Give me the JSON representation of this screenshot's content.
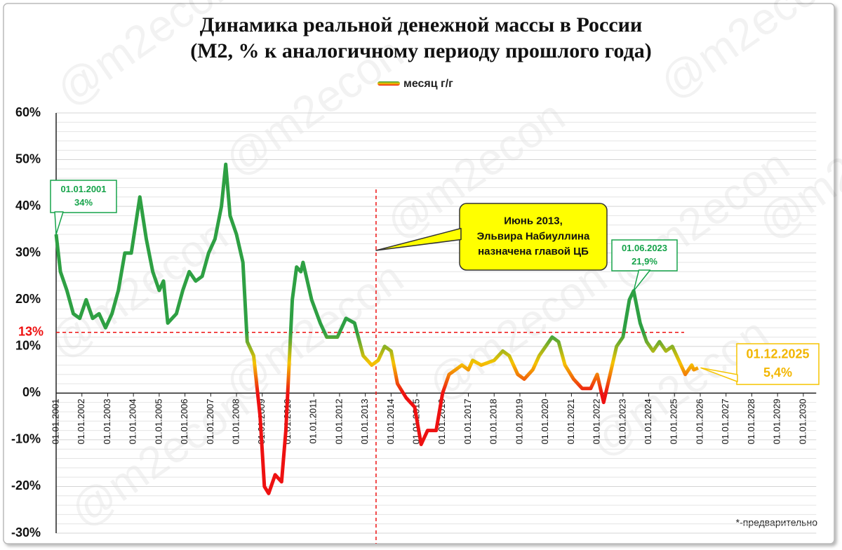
{
  "chart_data": {
    "type": "line",
    "title": [
      "Динамика реальной денежной массы в России",
      "(М2, % к аналогичному периоду прошлого года)"
    ],
    "watermark": "@m2econ",
    "footnote": "*-предварительно",
    "x": [
      "01.01.2001",
      "01.03.2001",
      "01.06.2001",
      "01.09.2001",
      "01.12.2001",
      "01.03.2002",
      "01.06.2002",
      "01.09.2002",
      "01.12.2002",
      "01.03.2003",
      "01.06.2003",
      "01.09.2003",
      "01.12.2003",
      "01.04.2004",
      "01.07.2004",
      "01.10.2004",
      "01.01.2005",
      "01.03.2005",
      "01.05.2005",
      "01.09.2005",
      "01.12.2005",
      "01.03.2006",
      "01.06.2006",
      "01.09.2006",
      "01.12.2006",
      "01.03.2007",
      "01.06.2007",
      "01.08.2007",
      "01.10.2007",
      "01.01.2008",
      "01.04.2008",
      "01.06.2008",
      "01.09.2008",
      "01.12.2008",
      "01.02.2009",
      "01.04.2009",
      "01.07.2009",
      "01.10.2009",
      "01.12.2009",
      "01.03.2010",
      "01.05.2010",
      "01.07.2010",
      "01.08.2010",
      "01.12.2010",
      "01.04.2011",
      "01.07.2011",
      "01.12.2011",
      "01.04.2012",
      "01.08.2012",
      "01.12.2012",
      "01.04.2013",
      "01.07.2013",
      "01.10.2013",
      "01.01.2014",
      "01.04.2014",
      "01.08.2014",
      "01.12.2014",
      "01.03.2015",
      "01.06.2015",
      "01.10.2015",
      "01.01.2016",
      "01.04.2016",
      "01.07.2016",
      "01.10.2016",
      "01.01.2017",
      "01.03.2017",
      "01.07.2017",
      "01.01.2018",
      "01.05.2018",
      "01.08.2018",
      "01.12.2018",
      "01.03.2019",
      "01.07.2019",
      "01.10.2019",
      "01.01.2020",
      "01.04.2020",
      "01.07.2020",
      "01.10.2020",
      "01.02.2021",
      "01.06.2021",
      "01.10.2021",
      "01.01.2022",
      "01.04.2022",
      "01.07.2022",
      "01.10.2022",
      "01.01.2023",
      "01.04.2023",
      "01.06.2023",
      "01.09.2023",
      "01.12.2023",
      "01.03.2024",
      "01.06.2024",
      "01.09.2024",
      "01.12.2024",
      "01.03.2025",
      "01.06.2025",
      "01.09.2025",
      "01.10.2025",
      "01.12.2025"
    ],
    "series": [
      {
        "name": "месяц г/г",
        "colors": [
          "#2ea043",
          "#f5c400",
          "#ee1111"
        ],
        "values": [
          34,
          26,
          22,
          17,
          16,
          20,
          16,
          17,
          14,
          17,
          22,
          30,
          30,
          42,
          33,
          26,
          22,
          24,
          15,
          17,
          22,
          26,
          24,
          25,
          30,
          33,
          40,
          49,
          38,
          34,
          28,
          11,
          8,
          -5,
          -20,
          -21.5,
          -17.5,
          -19,
          -8,
          20,
          27,
          26,
          28,
          20,
          15,
          12,
          12,
          16,
          15,
          8,
          6,
          7,
          10,
          9,
          2,
          -1,
          -3,
          -11,
          -8,
          -8,
          0,
          4,
          5,
          6,
          5,
          7,
          6,
          7,
          9,
          8,
          4,
          3,
          5,
          8,
          10,
          12,
          11,
          6,
          3,
          1,
          1,
          4,
          -2,
          4,
          10,
          12,
          20,
          21.9,
          15,
          11,
          9,
          11,
          9,
          10,
          7,
          4,
          6,
          5,
          5.4
        ]
      }
    ],
    "xlim": [
      "01.01.2001",
      "01.07.2030"
    ],
    "xticks": [
      "01.01.2001",
      "01.01.2002",
      "01.01.2003",
      "01.01.2004",
      "01.01.2005",
      "01.01.2006",
      "01.01.2007",
      "01.01.2008",
      "01.01.2009",
      "01.01.2010",
      "01.01.2011",
      "01.01.2012",
      "01.01.2013",
      "01.01.2014",
      "01.01.2015",
      "01.01.2016",
      "01.01.2017",
      "01.01.2018",
      "01.01.2019",
      "01.01.2020",
      "01.01.2021",
      "01.01.2022",
      "01.01.2023",
      "01.01.2024",
      "01.01.2025",
      "01.01.2026",
      "01.01.2027",
      "01.01.2028",
      "01.01.2029",
      "01.01.2030"
    ],
    "ylim": [
      -30,
      60
    ],
    "yticks": [
      {
        "value": -30,
        "label": "-30%"
      },
      {
        "value": -20,
        "label": "-20%"
      },
      {
        "value": -10,
        "label": "-10%"
      },
      {
        "value": 0,
        "label": "0%"
      },
      {
        "value": 10,
        "label": "10%"
      },
      {
        "value": 20,
        "label": "20%"
      },
      {
        "value": 30,
        "label": "30%"
      },
      {
        "value": 40,
        "label": "40%"
      },
      {
        "value": 50,
        "label": "50%"
      },
      {
        "value": 60,
        "label": "60%"
      }
    ],
    "minor_grid": [
      -28,
      -26,
      -24,
      -22,
      -18,
      -16,
      -14,
      -12,
      -8,
      -6,
      -4,
      -2,
      2,
      4,
      6,
      8,
      12,
      14,
      16,
      18,
      22,
      24,
      26,
      28,
      32,
      34,
      36,
      38,
      42,
      44,
      46,
      48,
      52,
      54,
      56,
      58
    ],
    "reference_line": {
      "value": 13,
      "label": "13%",
      "color": "#ee1111"
    },
    "annotations": [
      {
        "lines": [
          "01.01.2001",
          "34%"
        ],
        "color": "#16a34a"
      },
      {
        "lines": [
          "Июнь 2013,",
          "Эльвира Набиуллина",
          "назначена главой ЦБ"
        ],
        "x": "01.06.2013",
        "color": "#ffff00"
      },
      {
        "lines": [
          "01.06.2023",
          "21,9%"
        ],
        "color": "#16a34a"
      },
      {
        "lines": [
          "01.12.2025",
          "5,4%"
        ],
        "color": "#f5c400"
      }
    ]
  }
}
